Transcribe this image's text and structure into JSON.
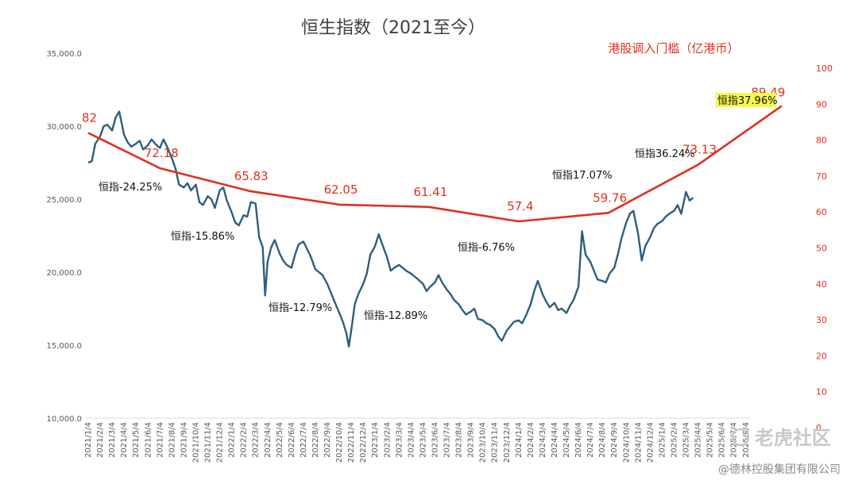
{
  "chart_data": {
    "type": "line",
    "title": "恒生指数（2021至今）",
    "right_axis_title": "港股调入门槛（亿港币）",
    "left_axis": {
      "ylim": [
        10000,
        35000
      ],
      "ticks": [
        10000,
        15000,
        20000,
        25000,
        30000,
        35000
      ],
      "tick_labels": [
        "10,000.0",
        "15,000.0",
        "20,000.0",
        "25,000.0",
        "30,000.0",
        "35,000.0"
      ]
    },
    "right_axis": {
      "ylim": [
        0,
        100
      ],
      "ticks": [
        0,
        10,
        20,
        30,
        40,
        50,
        60,
        70,
        80,
        90,
        100
      ],
      "tick_labels": [
        "0",
        "10",
        "20",
        "30",
        "40",
        "50",
        "60",
        "70",
        "80",
        "90",
        "100"
      ]
    },
    "x_tick_labels": [
      "2021/1/4",
      "2021/2/4",
      "2021/3/4",
      "2021/4/4",
      "2021/5/4",
      "2021/6/4",
      "2021/7/4",
      "2021/8/4",
      "2021/9/4",
      "2021/10/4",
      "2021/11/4",
      "2021/12/4",
      "2022/1/4",
      "2022/2/4",
      "2022/3/4",
      "2022/4/4",
      "2022/5/4",
      "2022/6/4",
      "2022/7/4",
      "2022/8/4",
      "2022/9/4",
      "2022/10/4",
      "2022/11/4",
      "2022/12/4",
      "2023/1/4",
      "2023/2/4",
      "2023/3/4",
      "2023/4/4",
      "2023/5/4",
      "2023/6/4",
      "2023/7/4",
      "2023/8/4",
      "2023/9/4",
      "2023/10/4",
      "2023/11/4",
      "2023/12/4",
      "2024/1/4",
      "2024/2/4",
      "2024/3/4",
      "2024/4/4",
      "2024/5/4",
      "2024/6/4",
      "2024/7/4",
      "2024/8/4",
      "2024/9/4",
      "2024/10/4",
      "2024/11/4",
      "2024/12/4",
      "2025/1/4",
      "2025/2/4",
      "2025/3/4",
      "2025/4/4",
      "2025/5/4",
      "2025/6/4",
      "2025/7/4",
      "2025/8/4"
    ],
    "series": [
      {
        "name": "恒生指数",
        "axis": "left",
        "color": "#2e5e7e",
        "points": [
          [
            0,
            27500
          ],
          [
            0.3,
            27600
          ],
          [
            0.6,
            28800
          ],
          [
            1.0,
            29300
          ],
          [
            1.3,
            30000
          ],
          [
            1.6,
            30100
          ],
          [
            2.0,
            29700
          ],
          [
            2.3,
            30600
          ],
          [
            2.6,
            31000
          ],
          [
            3.0,
            29400
          ],
          [
            3.3,
            28900
          ],
          [
            3.6,
            28600
          ],
          [
            4.0,
            28800
          ],
          [
            4.3,
            29000
          ],
          [
            4.6,
            28400
          ],
          [
            5.0,
            28700
          ],
          [
            5.3,
            29100
          ],
          [
            5.6,
            28800
          ],
          [
            6.0,
            28500
          ],
          [
            6.3,
            29100
          ],
          [
            6.6,
            28600
          ],
          [
            7.0,
            27800
          ],
          [
            7.3,
            27100
          ],
          [
            7.6,
            26000
          ],
          [
            8.0,
            25800
          ],
          [
            8.3,
            26100
          ],
          [
            8.6,
            25600
          ],
          [
            9.0,
            26000
          ],
          [
            9.3,
            24800
          ],
          [
            9.6,
            24600
          ],
          [
            10.0,
            25200
          ],
          [
            10.3,
            25000
          ],
          [
            10.6,
            24400
          ],
          [
            11.0,
            25600
          ],
          [
            11.3,
            25800
          ],
          [
            11.6,
            24900
          ],
          [
            12.0,
            24100
          ],
          [
            12.3,
            23400
          ],
          [
            12.6,
            23200
          ],
          [
            13.0,
            23900
          ],
          [
            13.3,
            23800
          ],
          [
            13.6,
            24800
          ],
          [
            14.0,
            24700
          ],
          [
            14.3,
            22400
          ],
          [
            14.6,
            21700
          ],
          [
            14.8,
            18400
          ],
          [
            15.0,
            20700
          ],
          [
            15.3,
            21700
          ],
          [
            15.6,
            22200
          ],
          [
            16.0,
            21300
          ],
          [
            16.3,
            20800
          ],
          [
            16.6,
            20500
          ],
          [
            17.0,
            20300
          ],
          [
            17.3,
            21200
          ],
          [
            17.6,
            21900
          ],
          [
            18.0,
            22100
          ],
          [
            18.3,
            21600
          ],
          [
            18.6,
            21100
          ],
          [
            19.0,
            20200
          ],
          [
            19.3,
            20000
          ],
          [
            19.6,
            19800
          ],
          [
            20.0,
            19200
          ],
          [
            20.3,
            18600
          ],
          [
            20.6,
            18000
          ],
          [
            21.0,
            17200
          ],
          [
            21.3,
            16600
          ],
          [
            21.6,
            15800
          ],
          [
            21.8,
            14900
          ],
          [
            22.0,
            16000
          ],
          [
            22.3,
            17800
          ],
          [
            22.6,
            18500
          ],
          [
            23.0,
            19200
          ],
          [
            23.3,
            19900
          ],
          [
            23.6,
            21200
          ],
          [
            24.0,
            21800
          ],
          [
            24.3,
            22600
          ],
          [
            24.6,
            21900
          ],
          [
            25.0,
            21000
          ],
          [
            25.3,
            20100
          ],
          [
            25.6,
            20300
          ],
          [
            26.0,
            20500
          ],
          [
            26.3,
            20300
          ],
          [
            26.6,
            20100
          ],
          [
            27.0,
            19900
          ],
          [
            27.3,
            19700
          ],
          [
            27.6,
            19500
          ],
          [
            28.0,
            19200
          ],
          [
            28.3,
            18700
          ],
          [
            28.6,
            19000
          ],
          [
            29.0,
            19300
          ],
          [
            29.3,
            19800
          ],
          [
            29.6,
            19300
          ],
          [
            30.0,
            18800
          ],
          [
            30.3,
            18500
          ],
          [
            30.6,
            18100
          ],
          [
            31.0,
            17800
          ],
          [
            31.3,
            17400
          ],
          [
            31.6,
            17100
          ],
          [
            32.0,
            17300
          ],
          [
            32.3,
            17500
          ],
          [
            32.6,
            16800
          ],
          [
            33.0,
            16700
          ],
          [
            33.3,
            16500
          ],
          [
            33.6,
            16400
          ],
          [
            34.0,
            16100
          ],
          [
            34.3,
            15600
          ],
          [
            34.6,
            15300
          ],
          [
            35.0,
            16000
          ],
          [
            35.3,
            16300
          ],
          [
            35.6,
            16600
          ],
          [
            36.0,
            16700
          ],
          [
            36.3,
            16500
          ],
          [
            36.6,
            17000
          ],
          [
            37.0,
            17800
          ],
          [
            37.3,
            18700
          ],
          [
            37.6,
            19400
          ],
          [
            38.0,
            18500
          ],
          [
            38.3,
            18000
          ],
          [
            38.6,
            17600
          ],
          [
            39.0,
            17900
          ],
          [
            39.3,
            17400
          ],
          [
            39.6,
            17500
          ],
          [
            40.0,
            17200
          ],
          [
            40.3,
            17700
          ],
          [
            40.6,
            18100
          ],
          [
            41.0,
            19000
          ],
          [
            41.3,
            22800
          ],
          [
            41.6,
            21200
          ],
          [
            42.0,
            20700
          ],
          [
            42.3,
            20100
          ],
          [
            42.6,
            19500
          ],
          [
            43.0,
            19400
          ],
          [
            43.3,
            19300
          ],
          [
            43.6,
            19900
          ],
          [
            44.0,
            20300
          ],
          [
            44.3,
            21200
          ],
          [
            44.6,
            22300
          ],
          [
            45.0,
            23400
          ],
          [
            45.3,
            24000
          ],
          [
            45.6,
            24200
          ],
          [
            46.0,
            22600
          ],
          [
            46.3,
            20800
          ],
          [
            46.6,
            21800
          ],
          [
            47.0,
            22400
          ],
          [
            47.3,
            23000
          ],
          [
            47.6,
            23300
          ],
          [
            48.0,
            23500
          ],
          [
            48.3,
            23800
          ],
          [
            48.6,
            24000
          ],
          [
            49.0,
            24200
          ],
          [
            49.3,
            24600
          ],
          [
            49.6,
            24000
          ],
          [
            50.0,
            25500
          ],
          [
            50.3,
            24900
          ],
          [
            50.6,
            25100
          ]
        ]
      },
      {
        "name": "港股调入门槛（亿港币）",
        "axis": "right",
        "color": "#e0301e",
        "points": [
          [
            0,
            82
          ],
          [
            6,
            72.18
          ],
          [
            13.5,
            65.83
          ],
          [
            21,
            62.05
          ],
          [
            28.5,
            61.41
          ],
          [
            36,
            57.4
          ],
          [
            43.5,
            59.76
          ],
          [
            51,
            73.13
          ],
          [
            58,
            89.49
          ]
        ],
        "labels": [
          "82",
          "72.18",
          "65.83",
          "62.05",
          "61.41",
          "57.4",
          "59.76",
          "73.13",
          "89.49"
        ]
      }
    ],
    "annotations": [
      "恒指-24.25%",
      "恒指-15.86%",
      "恒指-12.79%",
      "恒指-12.89%",
      "恒指-6.76%",
      "恒指17.07%",
      "恒指36.24%",
      "恒指37.96%"
    ],
    "watermark": "老虎社区",
    "credit": "@德林控股集团有限公司"
  }
}
